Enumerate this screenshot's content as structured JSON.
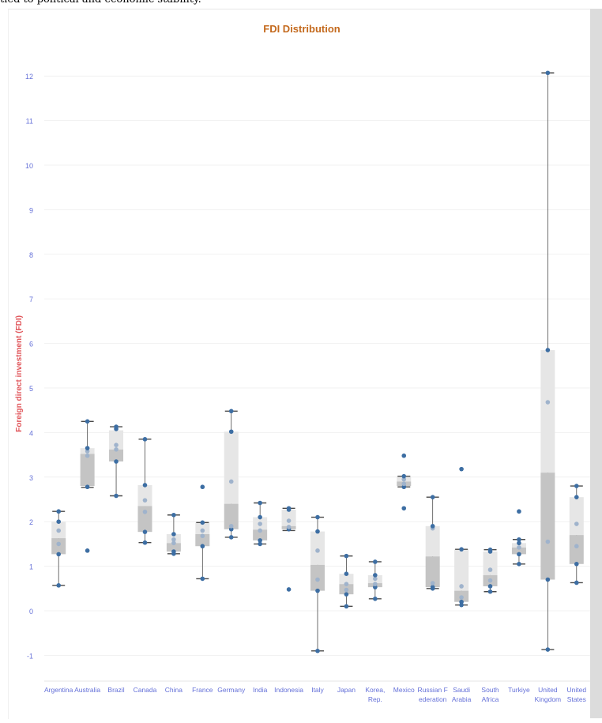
{
  "caption": "tied to political and economic stability.",
  "chart_data": {
    "type": "boxplot",
    "title": "FDI Distribution",
    "xlabel": "",
    "ylabel": "Foreign direct investment (FDI)",
    "ylim": [
      -1.55,
      12.4
    ],
    "y_ticks": [
      -1,
      0,
      1,
      2,
      3,
      4,
      5,
      6,
      7,
      8,
      9,
      10,
      11,
      12
    ],
    "grid": true,
    "colors": {
      "title": "#c46a1e",
      "ylabel": "#e0555a",
      "tick": "#6470d8",
      "box_upper": "#e6e6e6",
      "box_lower": "#c4c4c4",
      "whisker": "#4a4a4a",
      "point": "#3d6ea3",
      "point_light": "#9fb3cc"
    },
    "categories": [
      {
        "label": "Argentina",
        "min": 0.57,
        "q1": 1.27,
        "median": 1.63,
        "q3": 2.0,
        "max": 2.23,
        "points": [
          0.57,
          1.27,
          1.5,
          1.8,
          2.0,
          2.23
        ]
      },
      {
        "label": "Australia",
        "min": 2.77,
        "q1": 2.8,
        "median": 3.52,
        "q3": 3.65,
        "max": 4.25,
        "points": [
          1.35,
          2.78,
          3.48,
          3.58,
          3.65,
          4.25
        ]
      },
      {
        "label": "Brazil",
        "min": 2.58,
        "q1": 3.35,
        "median": 3.62,
        "q3": 4.05,
        "max": 4.13,
        "points": [
          2.58,
          3.35,
          3.62,
          3.72,
          4.08,
          4.13
        ]
      },
      {
        "label": "Canada",
        "min": 1.53,
        "q1": 1.77,
        "median": 2.35,
        "q3": 2.82,
        "max": 3.85,
        "points": [
          1.53,
          1.77,
          2.22,
          2.48,
          2.82,
          3.85
        ]
      },
      {
        "label": "China",
        "min": 1.28,
        "q1": 1.33,
        "median": 1.52,
        "q3": 1.72,
        "max": 2.15,
        "points": [
          1.28,
          1.33,
          1.52,
          1.6,
          1.72,
          2.15
        ]
      },
      {
        "label": "France",
        "min": 0.72,
        "q1": 1.45,
        "median": 1.72,
        "q3": 1.98,
        "max": 1.98,
        "points": [
          0.72,
          1.45,
          1.68,
          1.8,
          1.98,
          2.78
        ]
      },
      {
        "label": "Germany",
        "min": 1.65,
        "q1": 1.83,
        "median": 2.4,
        "q3": 4.02,
        "max": 4.48,
        "points": [
          1.65,
          1.83,
          1.9,
          2.9,
          4.02,
          4.48
        ]
      },
      {
        "label": "India",
        "min": 1.5,
        "q1": 1.58,
        "median": 1.82,
        "q3": 2.1,
        "max": 2.42,
        "points": [
          1.5,
          1.58,
          1.8,
          1.95,
          2.1,
          2.42
        ]
      },
      {
        "label": "Indonesia",
        "min": 1.8,
        "q1": 1.83,
        "median": 1.9,
        "q3": 2.27,
        "max": 2.3,
        "points": [
          0.48,
          1.83,
          1.88,
          2.02,
          2.27,
          2.3
        ]
      },
      {
        "label": "Italy",
        "min": -0.9,
        "q1": 0.45,
        "median": 1.03,
        "q3": 1.78,
        "max": 2.1,
        "points": [
          -0.9,
          0.45,
          0.7,
          1.35,
          1.78,
          2.1
        ]
      },
      {
        "label": "Japan",
        "min": 0.1,
        "q1": 0.37,
        "median": 0.6,
        "q3": 0.83,
        "max": 1.23,
        "points": [
          0.1,
          0.37,
          0.47,
          0.6,
          0.83,
          1.23
        ]
      },
      {
        "label": "Korea,\nRep.",
        "min": 0.27,
        "q1": 0.53,
        "median": 0.62,
        "q3": 0.8,
        "max": 1.1,
        "points": [
          0.27,
          0.53,
          0.6,
          0.72,
          0.8,
          1.1
        ]
      },
      {
        "label": "Mexico",
        "min": 2.78,
        "q1": 2.8,
        "median": 2.9,
        "q3": 3.02,
        "max": 3.02,
        "points": [
          2.3,
          2.78,
          2.85,
          2.95,
          3.02,
          3.48
        ]
      },
      {
        "label": "Russian F\nederation",
        "min": 0.5,
        "q1": 0.53,
        "median": 1.22,
        "q3": 1.9,
        "max": 2.55,
        "points": [
          0.5,
          0.53,
          0.62,
          1.85,
          1.9,
          2.55
        ]
      },
      {
        "label": "Saudi\nArabia",
        "min": 0.13,
        "q1": 0.2,
        "median": 0.45,
        "q3": 1.38,
        "max": 1.38,
        "points": [
          0.13,
          0.2,
          0.3,
          0.55,
          1.38,
          3.18
        ]
      },
      {
        "label": "South\nAfrica",
        "min": 0.43,
        "q1": 0.55,
        "median": 0.8,
        "q3": 1.33,
        "max": 1.37,
        "points": [
          0.43,
          0.55,
          0.68,
          0.92,
          1.33,
          1.37
        ]
      },
      {
        "label": "Turkiye",
        "min": 1.05,
        "q1": 1.27,
        "median": 1.42,
        "q3": 1.52,
        "max": 1.6,
        "points": [
          1.05,
          1.27,
          1.42,
          1.52,
          1.6,
          2.23
        ]
      },
      {
        "label": "United\nKingdom",
        "min": -0.87,
        "q1": 0.7,
        "median": 3.1,
        "q3": 5.85,
        "max": 12.07,
        "points": [
          -0.87,
          0.7,
          1.55,
          4.68,
          5.85,
          12.07
        ]
      },
      {
        "label": "United\nStates",
        "min": 0.63,
        "q1": 1.05,
        "median": 1.7,
        "q3": 2.55,
        "max": 2.8,
        "points": [
          0.63,
          1.05,
          1.45,
          1.95,
          2.55,
          2.8
        ]
      }
    ]
  }
}
